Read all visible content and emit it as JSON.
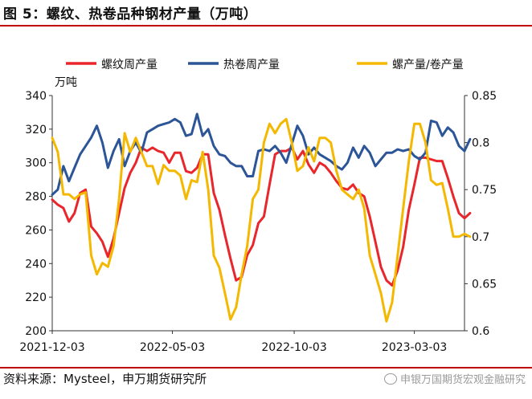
{
  "figure": {
    "title": "图 5：螺纹、热卷品种钢材产量（万吨）",
    "source": "资料来源：Mysteel，申万期货研究所",
    "watermark": "申银万国期货宏观金融研究"
  },
  "chart_data": {
    "type": "line",
    "title": "",
    "ylabel_left": "万吨",
    "ylim_left": [
      200,
      340
    ],
    "yticks_left": [
      200,
      220,
      240,
      260,
      280,
      300,
      320,
      340
    ],
    "ylim_right": [
      0.6,
      0.85
    ],
    "yticks_right": [
      "0.6",
      "0.65",
      "0.7",
      "0.75",
      "0.8",
      "0.85"
    ],
    "x_start": "2021-12-03",
    "x_end": "2023-05-05",
    "xticks": [
      "2021-12-03",
      "2022-05-03",
      "2022-10-03",
      "2023-03-03"
    ],
    "grid": false,
    "legend_position": "top",
    "series": [
      {
        "name": "螺纹周产量",
        "axis": "left",
        "color": "#e8262b",
        "points": [
          [
            "2021-12-03",
            278
          ],
          [
            "2021-12-10",
            275
          ],
          [
            "2021-12-17",
            273
          ],
          [
            "2021-12-24",
            265
          ],
          [
            "2021-12-31",
            270
          ],
          [
            "2022-01-07",
            282
          ],
          [
            "2022-01-14",
            284
          ],
          [
            "2022-01-21",
            262
          ],
          [
            "2022-01-28",
            258
          ],
          [
            "2022-02-04",
            253
          ],
          [
            "2022-02-11",
            244
          ],
          [
            "2022-02-18",
            255
          ],
          [
            "2022-02-25",
            270
          ],
          [
            "2022-03-04",
            285
          ],
          [
            "2022-03-11",
            294
          ],
          [
            "2022-03-18",
            300
          ],
          [
            "2022-03-25",
            309
          ],
          [
            "2022-04-01",
            307
          ],
          [
            "2022-04-08",
            309
          ],
          [
            "2022-04-15",
            307
          ],
          [
            "2022-04-22",
            306
          ],
          [
            "2022-04-29",
            300
          ],
          [
            "2022-05-06",
            306
          ],
          [
            "2022-05-13",
            306
          ],
          [
            "2022-05-20",
            295
          ],
          [
            "2022-05-27",
            294
          ],
          [
            "2022-06-03",
            297
          ],
          [
            "2022-06-10",
            305
          ],
          [
            "2022-06-17",
            305
          ],
          [
            "2022-06-24",
            282
          ],
          [
            "2022-07-01",
            272
          ],
          [
            "2022-07-08",
            257
          ],
          [
            "2022-07-15",
            243
          ],
          [
            "2022-07-22",
            230
          ],
          [
            "2022-07-29",
            232
          ],
          [
            "2022-08-05",
            245
          ],
          [
            "2022-08-12",
            251
          ],
          [
            "2022-08-19",
            264
          ],
          [
            "2022-08-26",
            268
          ],
          [
            "2022-09-02",
            287
          ],
          [
            "2022-09-09",
            305
          ],
          [
            "2022-09-16",
            307
          ],
          [
            "2022-09-23",
            307
          ],
          [
            "2022-09-30",
            309
          ],
          [
            "2022-10-07",
            302
          ],
          [
            "2022-10-14",
            307
          ],
          [
            "2022-10-21",
            299
          ],
          [
            "2022-10-28",
            294
          ],
          [
            "2022-11-04",
            300
          ],
          [
            "2022-11-11",
            298
          ],
          [
            "2022-11-18",
            294
          ],
          [
            "2022-11-25",
            289
          ],
          [
            "2022-12-02",
            285
          ],
          [
            "2022-12-09",
            284
          ],
          [
            "2022-12-16",
            287
          ],
          [
            "2022-12-23",
            282
          ],
          [
            "2022-12-30",
            280
          ],
          [
            "2023-01-06",
            268
          ],
          [
            "2023-01-13",
            253
          ],
          [
            "2023-01-20",
            238
          ],
          [
            "2023-01-27",
            230
          ],
          [
            "2023-02-03",
            227
          ],
          [
            "2023-02-10",
            236
          ],
          [
            "2023-02-17",
            250
          ],
          [
            "2023-02-24",
            272
          ],
          [
            "2023-03-03",
            287
          ],
          [
            "2023-03-10",
            303
          ],
          [
            "2023-03-17",
            303
          ],
          [
            "2023-03-24",
            302
          ],
          [
            "2023-03-31",
            301
          ],
          [
            "2023-04-07",
            301
          ],
          [
            "2023-04-14",
            291
          ],
          [
            "2023-04-21",
            280
          ],
          [
            "2023-04-28",
            270
          ],
          [
            "2023-05-05",
            267
          ],
          [
            "2023-05-12",
            270
          ]
        ]
      },
      {
        "name": "热卷周产量",
        "axis": "left",
        "color": "#2c5597",
        "points": [
          [
            "2021-12-03",
            281
          ],
          [
            "2021-12-10",
            284
          ],
          [
            "2021-12-17",
            298
          ],
          [
            "2021-12-24",
            289
          ],
          [
            "2021-12-31",
            297
          ],
          [
            "2022-01-07",
            305
          ],
          [
            "2022-01-14",
            310
          ],
          [
            "2022-01-21",
            315
          ],
          [
            "2022-01-28",
            322
          ],
          [
            "2022-02-04",
            312
          ],
          [
            "2022-02-11",
            297
          ],
          [
            "2022-02-18",
            307
          ],
          [
            "2022-02-25",
            314
          ],
          [
            "2022-03-04",
            298
          ],
          [
            "2022-03-11",
            307
          ],
          [
            "2022-03-18",
            312
          ],
          [
            "2022-03-25",
            306
          ],
          [
            "2022-04-01",
            318
          ],
          [
            "2022-04-08",
            320
          ],
          [
            "2022-04-15",
            322
          ],
          [
            "2022-04-22",
            323
          ],
          [
            "2022-04-29",
            324
          ],
          [
            "2022-05-06",
            326
          ],
          [
            "2022-05-13",
            324
          ],
          [
            "2022-05-20",
            316
          ],
          [
            "2022-05-27",
            317
          ],
          [
            "2022-06-03",
            329
          ],
          [
            "2022-06-10",
            316
          ],
          [
            "2022-06-17",
            320
          ],
          [
            "2022-06-24",
            310
          ],
          [
            "2022-07-01",
            305
          ],
          [
            "2022-07-08",
            304
          ],
          [
            "2022-07-15",
            300
          ],
          [
            "2022-07-22",
            298
          ],
          [
            "2022-07-29",
            298
          ],
          [
            "2022-08-05",
            292
          ],
          [
            "2022-08-12",
            292
          ],
          [
            "2022-08-19",
            307
          ],
          [
            "2022-08-26",
            308
          ],
          [
            "2022-09-02",
            307
          ],
          [
            "2022-09-09",
            310
          ],
          [
            "2022-09-16",
            306
          ],
          [
            "2022-09-23",
            300
          ],
          [
            "2022-09-30",
            311
          ],
          [
            "2022-10-07",
            322
          ],
          [
            "2022-10-14",
            316
          ],
          [
            "2022-10-21",
            305
          ],
          [
            "2022-10-28",
            309
          ],
          [
            "2022-11-04",
            305
          ],
          [
            "2022-11-11",
            303
          ],
          [
            "2022-11-18",
            301
          ],
          [
            "2022-11-25",
            298
          ],
          [
            "2022-12-02",
            296
          ],
          [
            "2022-12-09",
            300
          ],
          [
            "2022-12-16",
            309
          ],
          [
            "2022-12-23",
            303
          ],
          [
            "2022-12-30",
            310
          ],
          [
            "2023-01-06",
            306
          ],
          [
            "2023-01-13",
            298
          ],
          [
            "2023-01-20",
            302
          ],
          [
            "2023-01-27",
            306
          ],
          [
            "2023-02-03",
            306
          ],
          [
            "2023-02-10",
            308
          ],
          [
            "2023-02-17",
            307
          ],
          [
            "2023-02-24",
            308
          ],
          [
            "2023-03-03",
            304
          ],
          [
            "2023-03-10",
            302
          ],
          [
            "2023-03-17",
            306
          ],
          [
            "2023-03-24",
            325
          ],
          [
            "2023-03-31",
            324
          ],
          [
            "2023-04-07",
            316
          ],
          [
            "2023-04-14",
            321
          ],
          [
            "2023-04-21",
            318
          ],
          [
            "2023-04-28",
            310
          ],
          [
            "2023-05-05",
            307
          ],
          [
            "2023-05-12",
            314
          ]
        ]
      },
      {
        "name": "螺产量/卷产量",
        "axis": "right",
        "color": "#f5b800",
        "points": [
          [
            "2021-12-03",
            0.805
          ],
          [
            "2021-12-10",
            0.79
          ],
          [
            "2021-12-17",
            0.745
          ],
          [
            "2021-12-24",
            0.745
          ],
          [
            "2021-12-31",
            0.74
          ],
          [
            "2022-01-07",
            0.745
          ],
          [
            "2022-01-14",
            0.747
          ],
          [
            "2022-01-21",
            0.68
          ],
          [
            "2022-01-28",
            0.66
          ],
          [
            "2022-02-04",
            0.672
          ],
          [
            "2022-02-11",
            0.668
          ],
          [
            "2022-02-18",
            0.69
          ],
          [
            "2022-02-25",
            0.74
          ],
          [
            "2022-03-04",
            0.81
          ],
          [
            "2022-03-11",
            0.79
          ],
          [
            "2022-03-18",
            0.805
          ],
          [
            "2022-03-25",
            0.79
          ],
          [
            "2022-04-01",
            0.775
          ],
          [
            "2022-04-08",
            0.775
          ],
          [
            "2022-04-15",
            0.756
          ],
          [
            "2022-04-22",
            0.776
          ],
          [
            "2022-04-29",
            0.77
          ],
          [
            "2022-05-06",
            0.77
          ],
          [
            "2022-05-13",
            0.765
          ],
          [
            "2022-05-20",
            0.74
          ],
          [
            "2022-05-27",
            0.76
          ],
          [
            "2022-06-03",
            0.758
          ],
          [
            "2022-06-10",
            0.79
          ],
          [
            "2022-06-17",
            0.75
          ],
          [
            "2022-06-24",
            0.68
          ],
          [
            "2022-07-01",
            0.667
          ],
          [
            "2022-07-08",
            0.64
          ],
          [
            "2022-07-15",
            0.612
          ],
          [
            "2022-07-22",
            0.625
          ],
          [
            "2022-07-29",
            0.66
          ],
          [
            "2022-08-05",
            0.69
          ],
          [
            "2022-08-12",
            0.74
          ],
          [
            "2022-08-19",
            0.75
          ],
          [
            "2022-08-26",
            0.8
          ],
          [
            "2022-09-02",
            0.82
          ],
          [
            "2022-09-09",
            0.81
          ],
          [
            "2022-09-16",
            0.82
          ],
          [
            "2022-09-23",
            0.825
          ],
          [
            "2022-09-30",
            0.8
          ],
          [
            "2022-10-07",
            0.77
          ],
          [
            "2022-10-14",
            0.775
          ],
          [
            "2022-10-21",
            0.795
          ],
          [
            "2022-10-28",
            0.78
          ],
          [
            "2022-11-04",
            0.805
          ],
          [
            "2022-11-11",
            0.805
          ],
          [
            "2022-11-18",
            0.8
          ],
          [
            "2022-11-25",
            0.77
          ],
          [
            "2022-12-02",
            0.75
          ],
          [
            "2022-12-09",
            0.745
          ],
          [
            "2022-12-16",
            0.74
          ],
          [
            "2022-12-23",
            0.75
          ],
          [
            "2022-12-30",
            0.73
          ],
          [
            "2023-01-06",
            0.68
          ],
          [
            "2023-01-13",
            0.66
          ],
          [
            "2023-01-20",
            0.64
          ],
          [
            "2023-01-27",
            0.61
          ],
          [
            "2023-02-03",
            0.63
          ],
          [
            "2023-02-10",
            0.68
          ],
          [
            "2023-02-17",
            0.73
          ],
          [
            "2023-02-24",
            0.78
          ],
          [
            "2023-03-03",
            0.82
          ],
          [
            "2023-03-10",
            0.82
          ],
          [
            "2023-03-17",
            0.8
          ],
          [
            "2023-03-24",
            0.76
          ],
          [
            "2023-03-31",
            0.755
          ],
          [
            "2023-04-07",
            0.757
          ],
          [
            "2023-04-14",
            0.73
          ],
          [
            "2023-04-21",
            0.7
          ],
          [
            "2023-04-28",
            0.7
          ],
          [
            "2023-05-05",
            0.703
          ],
          [
            "2023-05-12",
            0.7
          ]
        ]
      }
    ]
  }
}
